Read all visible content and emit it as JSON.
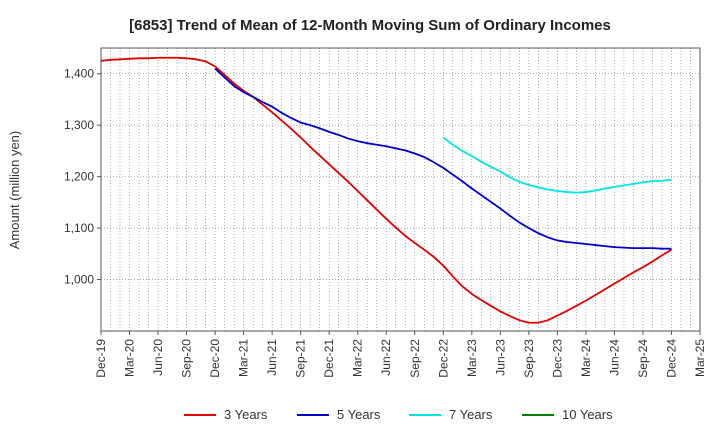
{
  "chart_data": {
    "type": "line",
    "title": "[6853]  Trend of Mean of 12-Month Moving Sum of Ordinary Incomes",
    "xlabel": "",
    "ylabel": "Amount (million yen)",
    "ylim": [
      900,
      1450
    ],
    "yticks": [
      1000,
      1100,
      1200,
      1300,
      1400
    ],
    "ytick_labels": [
      "1,000",
      "1,100",
      "1,200",
      "1,300",
      "1,400"
    ],
    "x_start_index": 0,
    "x_end_index": 63,
    "xtick_labels": [
      "Dec-19",
      "Mar-20",
      "Jun-20",
      "Sep-20",
      "Dec-20",
      "Mar-21",
      "Jun-21",
      "Sep-21",
      "Dec-21",
      "Mar-22",
      "Jun-22",
      "Sep-22",
      "Dec-22",
      "Mar-23",
      "Jun-23",
      "Sep-23",
      "Dec-23",
      "Mar-24",
      "Jun-24",
      "Sep-24",
      "Dec-24",
      "Mar-25"
    ],
    "grid": true,
    "series": [
      {
        "name": "3 Years",
        "color": "#e00000",
        "x": [
          0,
          1,
          2,
          3,
          4,
          5,
          6,
          7,
          8,
          9,
          10,
          11,
          12,
          13,
          14,
          15,
          16,
          17,
          18,
          19,
          20,
          21,
          22,
          23,
          24,
          25,
          26,
          27,
          28,
          29,
          30,
          31,
          32,
          33,
          34,
          35,
          36,
          37,
          38,
          39,
          40,
          41,
          42,
          43,
          44,
          45,
          46,
          47,
          48,
          49,
          50,
          51,
          52,
          53,
          54,
          55,
          56,
          57,
          58,
          59,
          60
        ],
        "values": [
          1425,
          1427,
          1428,
          1429,
          1430,
          1430,
          1431,
          1431,
          1431,
          1430,
          1428,
          1424,
          1414,
          1398,
          1381,
          1367,
          1355,
          1340,
          1325,
          1309,
          1293,
          1276,
          1258,
          1241,
          1224,
          1207,
          1190,
          1172,
          1154,
          1136,
          1118,
          1101,
          1085,
          1071,
          1058,
          1044,
          1027,
          1006,
          987,
          972,
          960,
          949,
          938,
          929,
          921,
          916,
          916,
          921,
          930,
          939,
          949,
          959,
          970,
          981,
          992,
          1003,
          1014,
          1024,
          1035,
          1047,
          1058
        ]
      },
      {
        "name": "5 Years",
        "color": "#0000c8",
        "x": [
          12,
          13,
          14,
          15,
          16,
          17,
          18,
          19,
          20,
          21,
          22,
          23,
          24,
          25,
          26,
          27,
          28,
          29,
          30,
          31,
          32,
          33,
          34,
          35,
          36,
          37,
          38,
          39,
          40,
          41,
          42,
          43,
          44,
          45,
          46,
          47,
          48,
          49,
          50,
          51,
          52,
          53,
          54,
          55,
          56,
          57,
          58,
          59,
          60
        ],
        "values": [
          1410,
          1393,
          1376,
          1364,
          1355,
          1345,
          1336,
          1324,
          1314,
          1305,
          1300,
          1294,
          1287,
          1281,
          1274,
          1269,
          1265,
          1262,
          1259,
          1255,
          1251,
          1245,
          1238,
          1228,
          1217,
          1204,
          1191,
          1177,
          1164,
          1151,
          1138,
          1124,
          1111,
          1100,
          1090,
          1082,
          1076,
          1073,
          1071,
          1069,
          1067,
          1065,
          1063,
          1062,
          1061,
          1061,
          1061,
          1060,
          1060
        ]
      },
      {
        "name": "7 Years",
        "color": "#00e5e5",
        "x": [
          36,
          37,
          38,
          39,
          40,
          41,
          42,
          43,
          44,
          45,
          46,
          47,
          48,
          49,
          50,
          51,
          52,
          53,
          54,
          55,
          56,
          57,
          58,
          59,
          60
        ],
        "values": [
          1276,
          1262,
          1250,
          1240,
          1229,
          1219,
          1210,
          1199,
          1190,
          1184,
          1179,
          1175,
          1172,
          1170,
          1169,
          1170,
          1173,
          1177,
          1180,
          1183,
          1186,
          1189,
          1191,
          1192,
          1194
        ]
      },
      {
        "name": "10 Years",
        "color": "#008000",
        "x": [],
        "values": []
      }
    ]
  }
}
